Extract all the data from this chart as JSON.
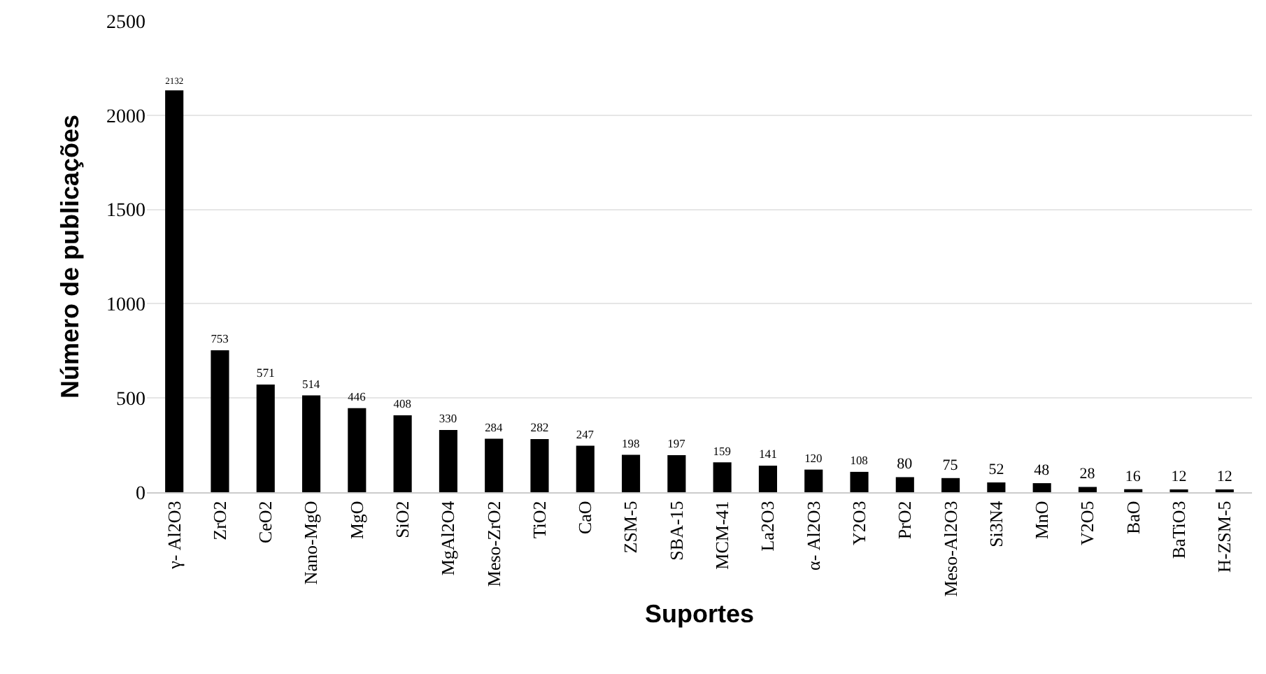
{
  "chart_data": {
    "type": "bar",
    "xlabel": "Suportes",
    "ylabel": "Número de publicações",
    "categories": [
      "γ- Al2O3",
      "ZrO2",
      "CeO2",
      "Nano-MgO",
      "MgO",
      "SiO2",
      "MgAl2O4",
      "Meso-ZrO2",
      "TiO2",
      "CaO",
      "ZSM-5",
      "SBA-15",
      "MCM-41",
      "La2O3",
      "α- Al2O3",
      "Y2O3",
      "PrO2",
      "Meso-Al2O3",
      "Si3N4",
      "MnO",
      "V2O5",
      "BaO",
      "BaTiO3",
      "H-ZSM-5"
    ],
    "values": [
      2132,
      753,
      571,
      514,
      446,
      408,
      330,
      284,
      282,
      247,
      198,
      197,
      159,
      141,
      120,
      108,
      80,
      75,
      52,
      48,
      28,
      16,
      12,
      12
    ],
    "color": "#000000",
    "ylim": [
      0,
      2500
    ],
    "yticks": [
      0,
      500,
      1000,
      1500,
      2000,
      2500
    ],
    "grid": "y",
    "data_labels": true,
    "legend": false
  }
}
